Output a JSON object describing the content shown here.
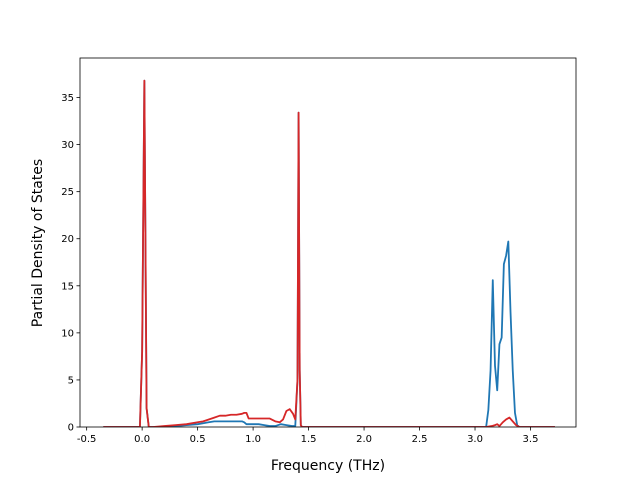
{
  "chart_data": {
    "type": "line",
    "title": "",
    "xlabel": "Frequency (THz)",
    "ylabel": "Partial Density of States",
    "xlim": [
      -0.56,
      3.91
    ],
    "ylim": [
      0,
      39.2
    ],
    "xticks": [
      "-0.5",
      "0.0",
      "0.5",
      "1.0",
      "1.5",
      "2.0",
      "2.5",
      "3.0",
      "3.5"
    ],
    "xtick_values": [
      -0.5,
      0.0,
      0.5,
      1.0,
      1.5,
      2.0,
      2.5,
      3.0,
      3.5
    ],
    "yticks": [
      "0",
      "5",
      "10",
      "15",
      "20",
      "25",
      "30",
      "35"
    ],
    "ytick_values": [
      0,
      5,
      10,
      15,
      20,
      25,
      30,
      35
    ],
    "grid": false,
    "legend": "none",
    "series": [
      {
        "color": "#1f77b4",
        "x": [
          -0.35,
          -0.02,
          0.0,
          0.02,
          0.04,
          0.06,
          0.1,
          0.2,
          0.3,
          0.4,
          0.5,
          0.55,
          0.6,
          0.65,
          0.7,
          0.75,
          0.8,
          0.85,
          0.9,
          0.92,
          0.94,
          0.96,
          1.0,
          1.05,
          1.1,
          1.15,
          1.2,
          1.25,
          1.3,
          1.35,
          1.38,
          1.4,
          1.41,
          1.42,
          1.43,
          1.44,
          1.46,
          1.6,
          1.8,
          2.0,
          2.5,
          3.0,
          3.1,
          3.12,
          3.14,
          3.16,
          3.17,
          3.18,
          3.2,
          3.22,
          3.24,
          3.26,
          3.28,
          3.3,
          3.32,
          3.34,
          3.36,
          3.38,
          3.4,
          3.5,
          3.72
        ],
        "y": [
          0,
          0,
          8,
          36.8,
          2,
          0,
          0,
          0,
          0.1,
          0.2,
          0.3,
          0.4,
          0.5,
          0.6,
          0.6,
          0.6,
          0.6,
          0.6,
          0.6,
          0.5,
          0.3,
          0.3,
          0.3,
          0.3,
          0.2,
          0.1,
          0.1,
          0.3,
          0.2,
          0.1,
          0.1,
          5,
          33.4,
          6,
          0.2,
          0,
          0,
          0,
          0,
          0,
          0,
          0,
          0,
          1.8,
          6,
          15.6,
          11,
          6.5,
          3.9,
          8.8,
          9.5,
          17.3,
          18.2,
          19.7,
          12.2,
          6,
          1.5,
          0.2,
          0,
          0,
          0
        ]
      },
      {
        "color": "#d62728",
        "x": [
          -0.35,
          -0.02,
          0.0,
          0.02,
          0.04,
          0.06,
          0.1,
          0.2,
          0.3,
          0.4,
          0.5,
          0.55,
          0.6,
          0.65,
          0.7,
          0.75,
          0.8,
          0.85,
          0.9,
          0.92,
          0.94,
          0.96,
          1.0,
          1.05,
          1.1,
          1.15,
          1.2,
          1.24,
          1.27,
          1.3,
          1.33,
          1.36,
          1.38,
          1.4,
          1.41,
          1.42,
          1.43,
          1.44,
          1.46,
          1.6,
          1.8,
          2.0,
          2.5,
          3.0,
          3.1,
          3.15,
          3.18,
          3.2,
          3.22,
          3.25,
          3.28,
          3.31,
          3.34,
          3.37,
          3.4,
          3.5,
          3.72
        ],
        "y": [
          0,
          0,
          8,
          36.8,
          2,
          0,
          0,
          0.1,
          0.2,
          0.3,
          0.5,
          0.6,
          0.8,
          1.0,
          1.2,
          1.2,
          1.3,
          1.3,
          1.4,
          1.5,
          1.5,
          0.9,
          0.9,
          0.9,
          0.9,
          0.9,
          0.6,
          0.5,
          0.8,
          1.7,
          1.9,
          1.4,
          0.8,
          5,
          33.4,
          6,
          0.2,
          0,
          0,
          0,
          0,
          0,
          0,
          0,
          0,
          0.1,
          0.2,
          0.3,
          0.1,
          0.5,
          0.8,
          1.0,
          0.6,
          0.2,
          0,
          0,
          0
        ]
      }
    ]
  }
}
